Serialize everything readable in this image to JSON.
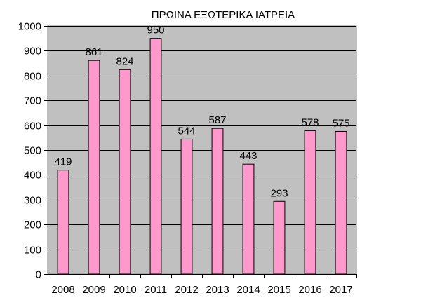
{
  "chart_data": {
    "type": "bar",
    "title": "ΠΡΩΙΝΑ ΕΞΩΤΕΡΙΚΑ ΙΑΤΡΕΙΑ",
    "categories": [
      "2008",
      "2009",
      "2010",
      "2011",
      "2012",
      "2013",
      "2014",
      "2015",
      "2016",
      "2017"
    ],
    "values": [
      419,
      861,
      824,
      950,
      544,
      587,
      443,
      293,
      578,
      575
    ],
    "data_labels": [
      "419",
      "861",
      "824",
      "950",
      "544",
      "587",
      "443",
      "293",
      "578",
      "575"
    ],
    "yticks": [
      "0",
      "100",
      "200",
      "300",
      "400",
      "500",
      "600",
      "700",
      "800",
      "900",
      "1000"
    ],
    "ylim": [
      0,
      1000
    ],
    "xlabel": "",
    "ylabel": "",
    "grid": true,
    "legend": "none",
    "colors": {
      "bar_fill": "#ff99cc",
      "bar_stroke": "#000000",
      "plot_bg": "#c0c0c0",
      "grid": "#000000"
    }
  }
}
